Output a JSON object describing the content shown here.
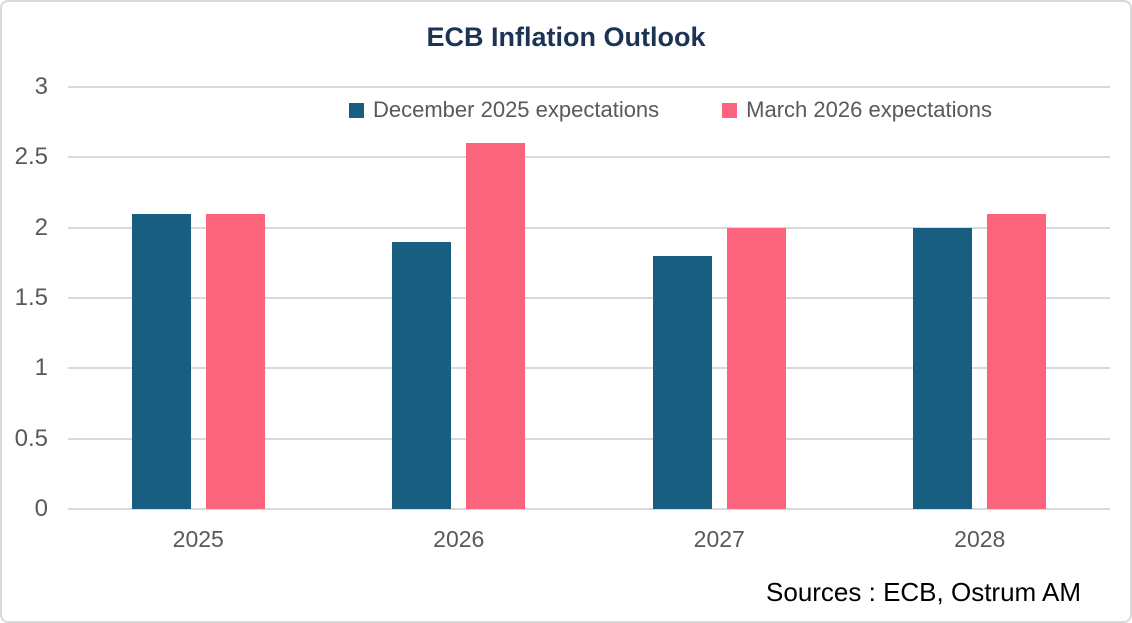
{
  "chart_data": {
    "type": "bar",
    "title": "ECB Inflation Outlook",
    "categories": [
      "2025",
      "2026",
      "2027",
      "2028"
    ],
    "series": [
      {
        "name": "December 2025 expectations",
        "color": "#175E80",
        "values": [
          2.1,
          1.9,
          1.8,
          2.0
        ]
      },
      {
        "name": "March 2026 expectations",
        "color": "#FC637C",
        "values": [
          2.1,
          2.6,
          2.0,
          2.1
        ]
      }
    ],
    "xlabel": "",
    "ylabel": "",
    "ylim": [
      0,
      3
    ],
    "yticks": [
      0,
      0.5,
      1,
      1.5,
      2,
      2.5,
      3
    ],
    "grid": true,
    "legend_position": "top-center-inside",
    "source_note": "Sources : ECB, Ostrum AM"
  },
  "styles": {
    "title_color": "#1B3456",
    "axis_text_color": "#595959",
    "gridline_color": "#D9D9D9",
    "card_border_color": "#D9D9D9",
    "background_color": "#FFFFFF",
    "source_text_color": "#000000"
  }
}
